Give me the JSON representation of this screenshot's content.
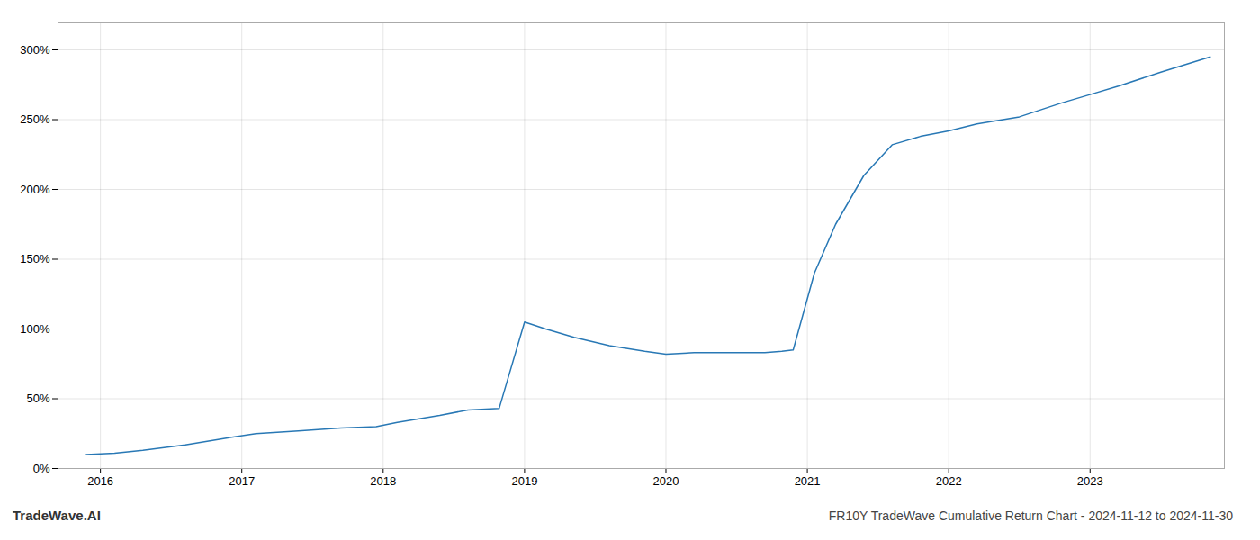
{
  "chart_data": {
    "type": "line",
    "title": "FR10Y TradeWave Cumulative Return Chart - 2024-11-12 to 2024-11-30",
    "annotations": [
      "TradeWave.AI"
    ],
    "x": [
      2015.9,
      2016.1,
      2016.3,
      2016.6,
      2016.9,
      2017.1,
      2017.4,
      2017.7,
      2017.95,
      2018.1,
      2018.4,
      2018.6,
      2018.82,
      2019.0,
      2019.15,
      2019.35,
      2019.6,
      2019.85,
      2020.0,
      2020.2,
      2020.5,
      2020.7,
      2020.82,
      2020.9,
      2021.05,
      2021.2,
      2021.4,
      2021.6,
      2021.8,
      2022.0,
      2022.2,
      2022.5,
      2022.8,
      2023.0,
      2023.2,
      2023.5,
      2023.85
    ],
    "values": [
      10,
      11,
      13,
      17,
      22,
      25,
      27,
      29,
      30,
      33,
      38,
      42,
      43,
      105,
      100,
      94,
      88,
      84,
      82,
      83,
      83,
      83,
      84,
      85,
      140,
      175,
      210,
      232,
      238,
      242,
      247,
      252,
      262,
      268,
      274,
      284,
      295
    ],
    "color": "#2878b5",
    "xlim": [
      2015.7,
      2023.95
    ],
    "ylim": [
      0,
      320
    ],
    "xticks": [
      2016,
      2017,
      2018,
      2019,
      2020,
      2021,
      2022,
      2023
    ],
    "yticks": [
      {
        "value": 0,
        "label": "0%"
      },
      {
        "value": 50,
        "label": "50%"
      },
      {
        "value": 100,
        "label": "100%"
      },
      {
        "value": 150,
        "label": "150%"
      },
      {
        "value": 200,
        "label": "200%"
      },
      {
        "value": 250,
        "label": "250%"
      },
      {
        "value": 300,
        "label": "300%"
      }
    ],
    "grid": true
  }
}
